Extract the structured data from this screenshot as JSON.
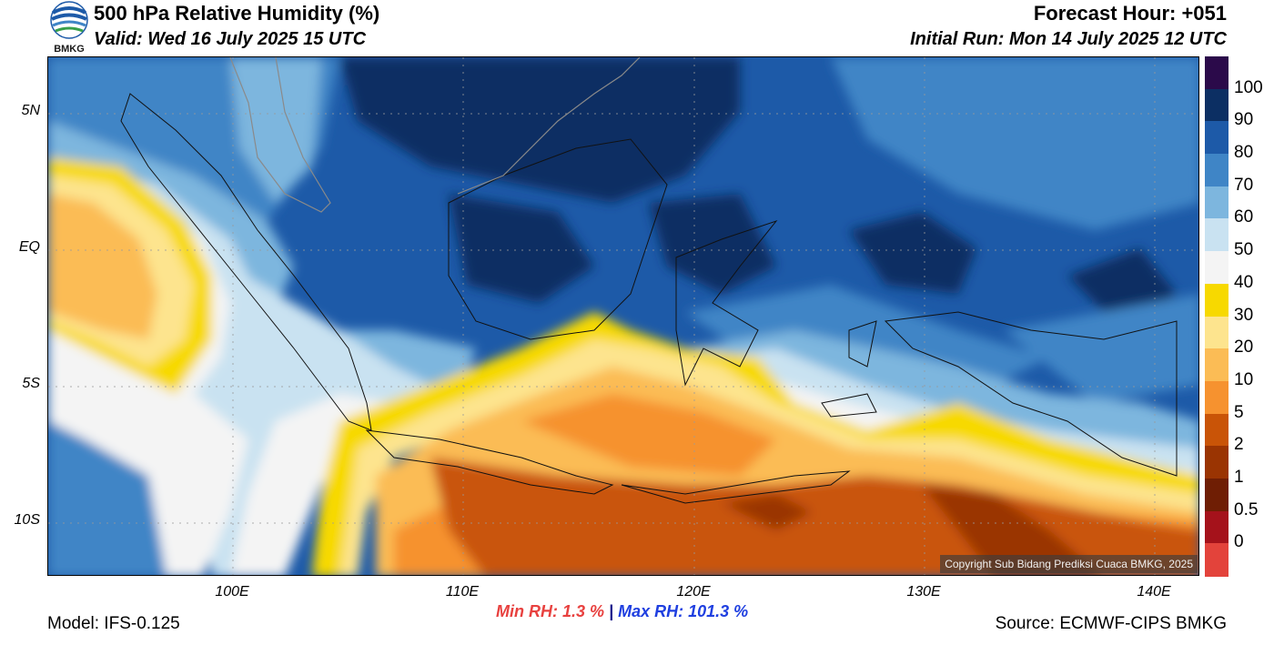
{
  "header": {
    "title": "500 hPa Relative Humidity (%)",
    "valid": "Valid: Wed 16 July 2025 15 UTC",
    "forecast_hour": "Forecast Hour: +051",
    "initial_run": "Initial Run: Mon 14 July 2025 12 UTC",
    "logo_text": "BMKG"
  },
  "axes": {
    "lat_labels": [
      "5N",
      "EQ",
      "5S",
      "10S"
    ],
    "lon_labels": [
      "100E",
      "110E",
      "120E",
      "130E",
      "140E"
    ]
  },
  "colorbar": {
    "labels": [
      "100",
      "90",
      "80",
      "70",
      "60",
      "50",
      "40",
      "30",
      "20",
      "10",
      "5",
      "2",
      "1",
      "0.5",
      "0"
    ],
    "colors": [
      "#2b0a4a",
      "#0c2f63",
      "#1d5aa8",
      "#3f85c6",
      "#7db6de",
      "#c9e2f1",
      "#f4f4f4",
      "#f7d900",
      "#fde48e",
      "#fbbc55",
      "#f6922f",
      "#c95407",
      "#9a3402",
      "#6f1e04",
      "#a5121b",
      "#e3433b"
    ]
  },
  "stats": {
    "min_label": "Min RH:   1.3 %",
    "separator": "|",
    "max_label": "Max RH: 101.3 %"
  },
  "footer": {
    "model": "Model: IFS-0.125",
    "source": "Source: ECMWF-CIPS BMKG",
    "copyright": "Copyright Sub Bidang Prediksi Cuaca BMKG, 2025"
  }
}
